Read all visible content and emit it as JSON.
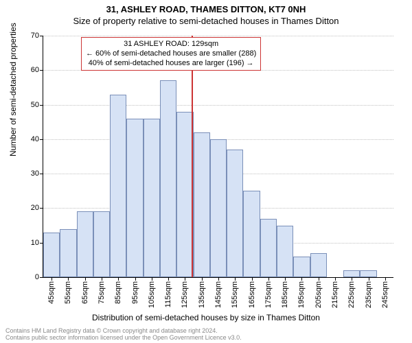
{
  "title_line1": "31, ASHLEY ROAD, THAMES DITTON, KT7 0NH",
  "title_line2": "Size of property relative to semi-detached houses in Thames Ditton",
  "ylabel": "Number of semi-detached properties",
  "xlabel": "Distribution of semi-detached houses by size in Thames Ditton",
  "footer_line1": "Contains HM Land Registry data © Crown copyright and database right 2024.",
  "footer_line2": "Contains public sector information licensed under the Open Government Licence v3.0.",
  "chart": {
    "type": "histogram",
    "ylim": [
      0,
      70
    ],
    "ytick_step": 10,
    "yticks": [
      0,
      10,
      20,
      30,
      40,
      50,
      60,
      70
    ],
    "categories": [
      "45sqm",
      "55sqm",
      "65sqm",
      "75sqm",
      "85sqm",
      "95sqm",
      "105sqm",
      "115sqm",
      "125sqm",
      "135sqm",
      "145sqm",
      "155sqm",
      "165sqm",
      "175sqm",
      "185sqm",
      "195sqm",
      "205sqm",
      "215sqm",
      "225sqm",
      "235sqm",
      "245sqm"
    ],
    "values": [
      13,
      14,
      19,
      19,
      53,
      46,
      46,
      57,
      48,
      42,
      40,
      37,
      25,
      17,
      15,
      6,
      7,
      0,
      2,
      2,
      0
    ],
    "bar_fill": "#d6e2f5",
    "bar_border": "#7a8fb8",
    "grid_color": "#c0c0c0",
    "background": "#ffffff",
    "highlight": {
      "value_sqm": 129,
      "line_color": "#cc3333",
      "box_border": "#cc3333",
      "lines": [
        "31 ASHLEY ROAD: 129sqm",
        "← 60% of semi-detached houses are smaller (288)",
        "40% of semi-detached houses are larger (196) →"
      ]
    }
  }
}
